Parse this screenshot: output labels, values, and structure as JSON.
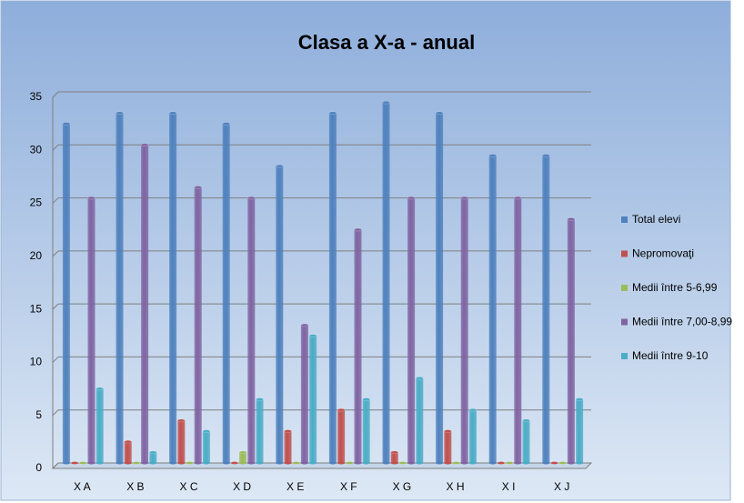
{
  "chart_data": {
    "type": "bar",
    "title": "Clasa a X-a - anual",
    "categories": [
      "X A",
      "X B",
      "X C",
      "X D",
      "X E",
      "X F",
      "X G",
      "X H",
      "X I",
      "X J"
    ],
    "series": [
      {
        "name": "Total elevi",
        "color": "#4f81bd",
        "values": [
          32,
          33,
          33,
          32,
          28,
          33,
          34,
          33,
          29,
          29
        ]
      },
      {
        "name": "Nepromovaţi",
        "color": "#c0504d",
        "values": [
          0,
          2,
          4,
          0,
          3,
          5,
          1,
          3,
          0,
          0
        ]
      },
      {
        "name": "Medii între 5-6,99",
        "color": "#9bbb59",
        "values": [
          0,
          0,
          0,
          1,
          0,
          0,
          0,
          0,
          0,
          0
        ]
      },
      {
        "name": "Medii între 7,00-8,99",
        "color": "#8064a2",
        "values": [
          25,
          30,
          26,
          25,
          13,
          22,
          25,
          25,
          25,
          23
        ]
      },
      {
        "name": "Medii între 9-10",
        "color": "#4bacc6",
        "values": [
          7,
          1,
          3,
          6,
          12,
          6,
          8,
          5,
          4,
          6
        ]
      }
    ],
    "ylim": [
      0,
      35
    ],
    "yticks": [
      0,
      5,
      10,
      15,
      20,
      25,
      30,
      35
    ],
    "grid": true,
    "legend": "right"
  }
}
